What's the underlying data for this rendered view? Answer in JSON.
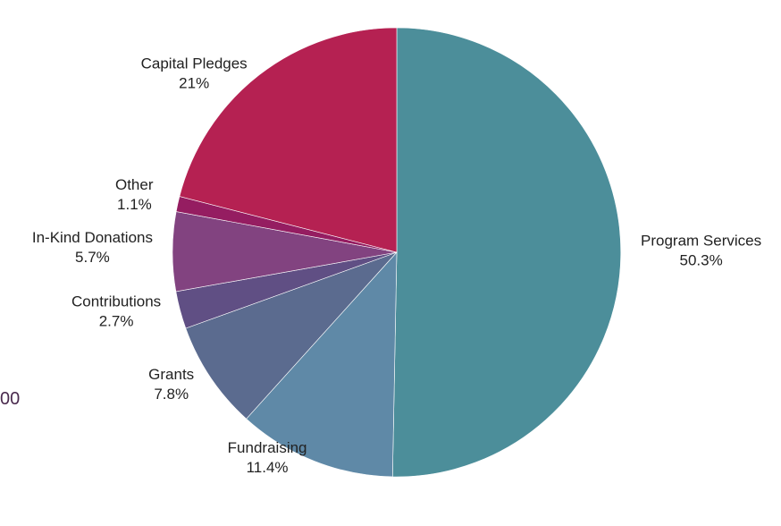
{
  "side_fragment": "00",
  "chart_data": {
    "type": "pie",
    "categories": [
      "Program Services",
      "Fundraising",
      "Grants",
      "Contributions",
      "In-Kind Donations",
      "Other",
      "Capital Pledges"
    ],
    "values": [
      50.3,
      11.4,
      7.8,
      2.7,
      5.7,
      1.1,
      21
    ],
    "value_labels": [
      "50.3%",
      "11.4%",
      "7.8%",
      "2.7%",
      "5.7%",
      "1.1%",
      "21%"
    ],
    "colors": [
      "#4c8e9a",
      "#5f89a7",
      "#5b6b8f",
      "#604f84",
      "#824380",
      "#951d61",
      "#b52152"
    ],
    "start_angle_deg": 0,
    "direction": "clockwise",
    "labels_position": "outside",
    "legend": false
  }
}
